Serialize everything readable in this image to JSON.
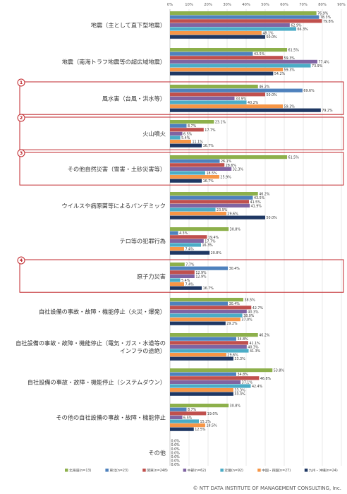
{
  "chart_data": {
    "type": "bar",
    "orientation": "horizontal",
    "title": "",
    "xlabel": "",
    "ylabel": "",
    "xlim": [
      0,
      90
    ],
    "x_ticks": [
      "0%",
      "10%",
      "20%",
      "30%",
      "40%",
      "50%",
      "60%",
      "70%",
      "80%",
      "90%"
    ],
    "grid": true,
    "legend_position": "bottom",
    "categories": [
      "地震（主として直下型地震）",
      "地震（南海トラフ地震等の超広域地震）",
      "風水害（台風・洪水等）",
      "火山噴火",
      "その他自然災害（雪害・土砂災害等）",
      "ウイルスや病原菌等によるパンデミック",
      "テロ等の犯罪行為",
      "原子力災害",
      "自社設備の事故・故障・機能停止（火災・爆発）",
      "自社設備の事故・故障・機能停止（電気・ガス・水道等の|インフラの途絶）",
      "自社設備の事故・故障・機能停止（システムダウン）",
      "その他の自社設備の事故・故障・機能停止",
      "その他"
    ],
    "series": [
      {
        "name": "北海道(n=13)",
        "color": "#8db04b",
        "values": [
          76.9,
          61.5,
          46.2,
          23.1,
          61.5,
          46.2,
          30.8,
          7.7,
          38.5,
          46.2,
          53.8,
          30.8,
          0.0
        ]
      },
      {
        "name": "東北(n=23)",
        "color": "#4e81bd",
        "values": [
          78.3,
          43.5,
          69.6,
          8.7,
          26.1,
          43.5,
          4.3,
          30.4,
          30.4,
          34.8,
          34.8,
          8.7,
          0.0
        ]
      },
      {
        "name": "関東(n=248)",
        "color": "#c0504d",
        "values": [
          79.8,
          59.3,
          50.0,
          17.7,
          28.6,
          41.5,
          19.4,
          12.9,
          42.7,
          41.1,
          46.8,
          19.0,
          0.0
        ]
      },
      {
        "name": "中部(n=62)",
        "color": "#8064a2",
        "values": [
          62.9,
          77.4,
          33.9,
          6.5,
          32.3,
          41.9,
          17.7,
          12.9,
          40.3,
          40.3,
          37.1,
          6.5,
          0.0
        ]
      },
      {
        "name": "近畿(n=92)",
        "color": "#4bacc6",
        "values": [
          66.3,
          73.9,
          40.2,
          5.4,
          18.5,
          23.9,
          16.3,
          5.4,
          38.0,
          41.3,
          42.4,
          15.2,
          0.0
        ]
      },
      {
        "name": "中国・四国(n=27)",
        "color": "#f79646",
        "values": [
          48.1,
          59.3,
          59.3,
          11.1,
          25.9,
          29.6,
          7.4,
          7.4,
          37.0,
          29.6,
          33.3,
          18.5,
          0.0
        ]
      },
      {
        "name": "九州・沖縄(n=24)",
        "color": "#1f3864",
        "values": [
          50.0,
          54.2,
          79.2,
          16.7,
          16.7,
          50.0,
          20.8,
          16.7,
          29.2,
          33.3,
          33.3,
          12.5,
          0.0
        ]
      }
    ],
    "data_labels": [
      [
        "76.9%",
        "78.3%",
        "79.8%",
        "62.9%",
        "66.3%",
        "48.1%",
        "50.0%"
      ],
      [
        "61.5%",
        "43.5%",
        "59.3%",
        "77.4%",
        "73.9%",
        "59.3%",
        "54.2%"
      ],
      [
        "46.2%",
        "69.6%",
        "50.0%",
        "33.9%",
        "40.2%",
        "59.3%",
        "79.2%"
      ],
      [
        "23.1%",
        "8.7%",
        "17.7%",
        "6.5%",
        "5.4%",
        "11.1%",
        "16.7%"
      ],
      [
        "61.5%",
        "26.1%",
        "28.6%",
        "32.3%",
        "18.5%",
        "25.9%",
        "16.7%"
      ],
      [
        "46.2%",
        "43.5%",
        "41.5%",
        "41.9%",
        "23.9%",
        "29.6%",
        "50.0%"
      ],
      [
        "30.8%",
        "4.3%",
        "19.4%",
        "17.7%",
        "16.3%",
        "7.4%",
        "20.8%"
      ],
      [
        "7.7%",
        "30.4%",
        "12.9%",
        "12.9%",
        "5.4%",
        "7.4%",
        "16.7%"
      ],
      [
        "38.5%",
        "30.4%",
        "42.7%",
        "40.3%",
        "38.0%",
        "37.0%",
        "29.2%"
      ],
      [
        "46.2%",
        "34.8%",
        "41.1%",
        "40.3%",
        "41.3%",
        "29.6%",
        "33.3%"
      ],
      [
        "53.8%",
        "34.8%",
        "46.8%",
        "37.1%",
        "42.4%",
        "33.3%",
        "33.3%"
      ],
      [
        "30.8%",
        "8.7%",
        "19.0%",
        "6.5%",
        "15.2%",
        "18.5%",
        "12.5%"
      ],
      [
        "0.0%",
        "0.0%",
        "0.0%",
        "0.0%",
        "0.0%",
        "0.0%",
        "0.0%"
      ]
    ],
    "highlight_boxes": [
      {
        "number": "1",
        "category_index": 2
      },
      {
        "number": "2",
        "category_index": 3
      },
      {
        "number": "3",
        "category_index": 4
      },
      {
        "number": "4",
        "category_index": 7
      }
    ],
    "highlight_color": "#c0262b"
  },
  "copyright": "© NTT DATA INSTITUTE OF MANAGEMENT CONSULTING, Inc."
}
